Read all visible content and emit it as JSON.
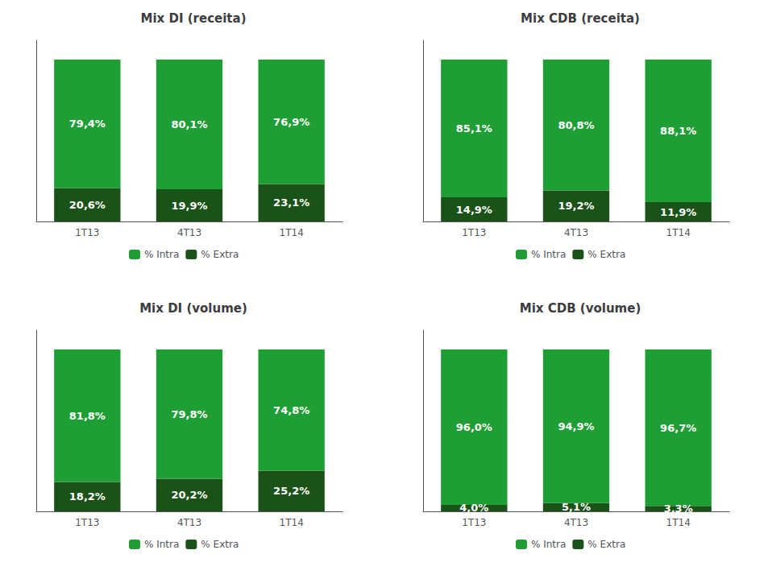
{
  "chart_data": [
    {
      "type": "bar",
      "title": "Mix DI (receita)",
      "categories": [
        "1T13",
        "4T13",
        "1T14"
      ],
      "series": [
        {
          "name": "% Extra",
          "color": "#1a5218",
          "values": [
            20.6,
            19.9,
            23.1
          ],
          "value_labels": [
            "20,6%",
            "19,9%",
            "23,1%"
          ]
        },
        {
          "name": "% Intra",
          "color": "#1e9e35",
          "values": [
            79.4,
            80.1,
            76.9
          ],
          "value_labels": [
            "79,4%",
            "80,1%",
            "76,9%"
          ]
        }
      ],
      "stacked": true,
      "ylim": [
        0,
        112
      ],
      "tick_labels": "x",
      "grid": false,
      "legend": "bottom",
      "data_labels": true
    },
    {
      "type": "bar",
      "title": "Mix CDB (receita)",
      "categories": [
        "1T13",
        "4T13",
        "1T14"
      ],
      "series": [
        {
          "name": "% Extra",
          "color": "#1a5218",
          "values": [
            14.9,
            19.2,
            11.9
          ],
          "value_labels": [
            "14,9%",
            "19,2%",
            "11,9%"
          ]
        },
        {
          "name": "% Intra",
          "color": "#1e9e35",
          "values": [
            85.1,
            80.8,
            88.1
          ],
          "value_labels": [
            "85,1%",
            "80,8%",
            "88,1%"
          ]
        }
      ],
      "stacked": true,
      "ylim": [
        0,
        112
      ],
      "tick_labels": "x",
      "grid": false,
      "legend": "bottom",
      "data_labels": true
    },
    {
      "type": "bar",
      "title": "Mix DI (volume)",
      "categories": [
        "1T13",
        "4T13",
        "1T14"
      ],
      "series": [
        {
          "name": "% Extra",
          "color": "#1a5218",
          "values": [
            18.2,
            20.2,
            25.2
          ],
          "value_labels": [
            "18,2%",
            "20,2%",
            "25,2%"
          ]
        },
        {
          "name": "% Intra",
          "color": "#1e9e35",
          "values": [
            81.8,
            79.8,
            74.8
          ],
          "value_labels": [
            "81,8%",
            "79,8%",
            "74,8%"
          ]
        }
      ],
      "stacked": true,
      "ylim": [
        0,
        112
      ],
      "tick_labels": "x",
      "grid": false,
      "legend": "bottom",
      "data_labels": true
    },
    {
      "type": "bar",
      "title": "Mix CDB (volume)",
      "categories": [
        "1T13",
        "4T13",
        "1T14"
      ],
      "series": [
        {
          "name": "% Extra",
          "color": "#1a5218",
          "values": [
            4.0,
            5.1,
            3.3
          ],
          "value_labels": [
            "4,0%",
            "5,1%",
            "3,3%"
          ]
        },
        {
          "name": "% Intra",
          "color": "#1e9e35",
          "values": [
            96.0,
            94.9,
            96.7
          ],
          "value_labels": [
            "96,0%",
            "94,9%",
            "96,7%"
          ]
        }
      ],
      "stacked": true,
      "ylim": [
        0,
        112
      ],
      "tick_labels": "x",
      "grid": false,
      "legend": "bottom",
      "data_labels": true
    }
  ]
}
